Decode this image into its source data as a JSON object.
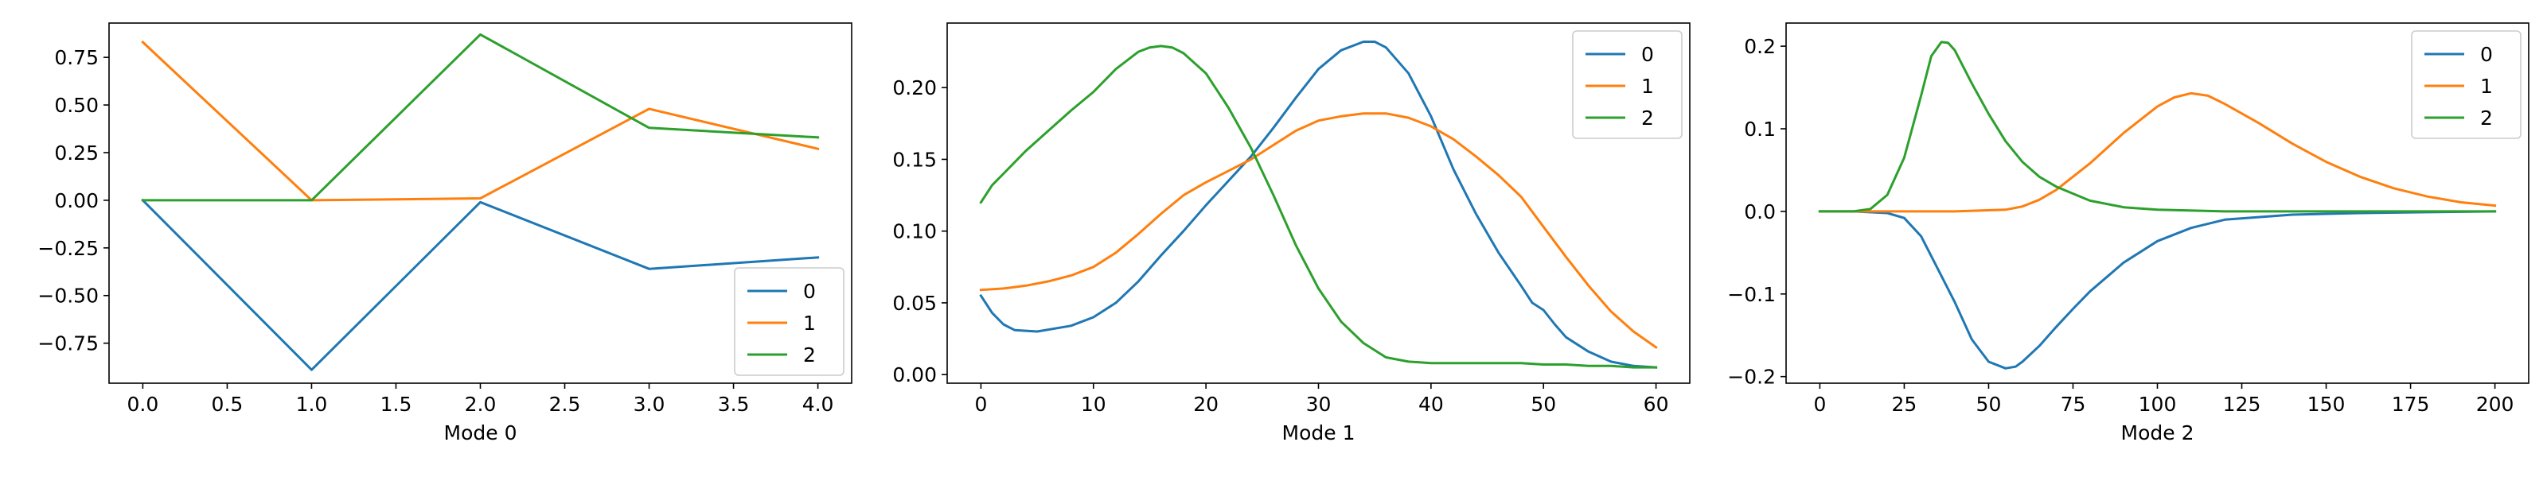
{
  "colors": [
    "#1f77b4",
    "#ff7f0e",
    "#2ca02c"
  ],
  "chart_data": [
    {
      "type": "line",
      "xlabel": "Mode 0",
      "ylabel": "",
      "xlim": [
        -0.2,
        4.2
      ],
      "ylim": [
        -0.96,
        0.93
      ],
      "xticks": [
        "0.0",
        "0.5",
        "1.0",
        "1.5",
        "2.0",
        "2.5",
        "3.0",
        "3.5",
        "4.0"
      ],
      "yticks": [
        "-0.75",
        "-0.50",
        "-0.25",
        "0.00",
        "0.25",
        "0.50",
        "0.75"
      ],
      "legend_position": "lower-right",
      "series": [
        {
          "name": "0",
          "x": [
            0,
            1,
            2,
            3,
            4
          ],
          "y": [
            0.0,
            -0.89,
            -0.01,
            -0.36,
            -0.3
          ]
        },
        {
          "name": "1",
          "x": [
            0,
            1,
            2,
            3,
            4
          ],
          "y": [
            0.83,
            0.0,
            0.01,
            0.48,
            0.27
          ]
        },
        {
          "name": "2",
          "x": [
            0,
            1,
            2,
            3,
            4
          ],
          "y": [
            0.0,
            0.0,
            0.87,
            0.38,
            0.33
          ]
        }
      ]
    },
    {
      "type": "line",
      "xlabel": "Mode 1",
      "ylabel": "",
      "xlim": [
        -3,
        63
      ],
      "ylim": [
        -0.006,
        0.245
      ],
      "xticks": [
        "0",
        "10",
        "20",
        "30",
        "40",
        "50",
        "60"
      ],
      "yticks": [
        "0.00",
        "0.05",
        "0.10",
        "0.15",
        "0.20"
      ],
      "legend_position": "top-right",
      "series": [
        {
          "name": "0",
          "x": [
            0,
            1,
            2,
            3,
            5,
            8,
            10,
            12,
            14,
            16,
            18,
            20,
            22,
            24,
            26,
            28,
            30,
            32,
            34,
            35,
            36,
            38,
            40,
            42,
            44,
            46,
            48,
            49,
            50,
            51,
            52,
            54,
            56,
            58,
            60
          ],
          "y": [
            0.055,
            0.043,
            0.035,
            0.031,
            0.03,
            0.034,
            0.04,
            0.05,
            0.065,
            0.083,
            0.1,
            0.118,
            0.135,
            0.152,
            0.172,
            0.193,
            0.213,
            0.226,
            0.232,
            0.232,
            0.228,
            0.21,
            0.18,
            0.143,
            0.112,
            0.085,
            0.062,
            0.05,
            0.045,
            0.035,
            0.026,
            0.016,
            0.009,
            0.006,
            0.005
          ]
        },
        {
          "name": "1",
          "x": [
            0,
            2,
            4,
            6,
            8,
            10,
            12,
            14,
            16,
            18,
            20,
            22,
            24,
            26,
            28,
            30,
            32,
            34,
            36,
            38,
            40,
            42,
            44,
            46,
            48,
            50,
            52,
            54,
            56,
            58,
            60
          ],
          "y": [
            0.059,
            0.06,
            0.062,
            0.065,
            0.069,
            0.075,
            0.085,
            0.098,
            0.112,
            0.125,
            0.134,
            0.142,
            0.15,
            0.16,
            0.17,
            0.177,
            0.18,
            0.182,
            0.182,
            0.179,
            0.173,
            0.164,
            0.152,
            0.139,
            0.124,
            0.103,
            0.082,
            0.062,
            0.044,
            0.03,
            0.019
          ]
        },
        {
          "name": "2",
          "x": [
            0,
            1,
            2,
            4,
            6,
            8,
            10,
            12,
            14,
            15,
            16,
            17,
            18,
            20,
            22,
            24,
            26,
            28,
            30,
            32,
            34,
            36,
            38,
            40,
            42,
            44,
            46,
            48,
            50,
            52,
            54,
            56,
            58,
            60
          ],
          "y": [
            0.12,
            0.132,
            0.14,
            0.156,
            0.17,
            0.184,
            0.197,
            0.213,
            0.225,
            0.228,
            0.229,
            0.228,
            0.224,
            0.21,
            0.186,
            0.158,
            0.125,
            0.09,
            0.06,
            0.037,
            0.022,
            0.012,
            0.009,
            0.008,
            0.008,
            0.008,
            0.008,
            0.008,
            0.007,
            0.007,
            0.006,
            0.006,
            0.005,
            0.005
          ]
        }
      ]
    },
    {
      "type": "line",
      "xlabel": "Mode 2",
      "ylabel": "",
      "xlim": [
        -10,
        210
      ],
      "ylim": [
        -0.208,
        0.228
      ],
      "xticks": [
        "0",
        "25",
        "50",
        "75",
        "100",
        "125",
        "150",
        "175",
        "200"
      ],
      "yticks": [
        "-0.2",
        "-0.1",
        "0.0",
        "0.1",
        "0.2"
      ],
      "legend_position": "top-right",
      "series": [
        {
          "name": "0",
          "x": [
            0,
            10,
            20,
            25,
            30,
            35,
            40,
            45,
            50,
            55,
            58,
            60,
            65,
            70,
            75,
            80,
            90,
            100,
            110,
            120,
            140,
            160,
            180,
            200
          ],
          "y": [
            0.0,
            0.0,
            -0.002,
            -0.008,
            -0.03,
            -0.07,
            -0.11,
            -0.155,
            -0.182,
            -0.19,
            -0.188,
            -0.182,
            -0.163,
            -0.14,
            -0.118,
            -0.097,
            -0.062,
            -0.036,
            -0.02,
            -0.01,
            -0.004,
            -0.002,
            -0.001,
            0.0
          ]
        },
        {
          "name": "1",
          "x": [
            0,
            20,
            40,
            55,
            60,
            65,
            70,
            80,
            90,
            100,
            105,
            110,
            115,
            120,
            130,
            140,
            150,
            160,
            170,
            180,
            190,
            200
          ],
          "y": [
            0.0,
            0.0,
            0.0,
            0.002,
            0.006,
            0.014,
            0.026,
            0.058,
            0.095,
            0.127,
            0.138,
            0.143,
            0.14,
            0.13,
            0.107,
            0.082,
            0.06,
            0.042,
            0.028,
            0.018,
            0.011,
            0.007
          ]
        },
        {
          "name": "2",
          "x": [
            0,
            10,
            15,
            20,
            25,
            30,
            33,
            36,
            38,
            40,
            45,
            50,
            55,
            60,
            65,
            70,
            80,
            90,
            100,
            120,
            140,
            160,
            200
          ],
          "y": [
            0.0,
            0.0,
            0.003,
            0.02,
            0.065,
            0.14,
            0.188,
            0.205,
            0.204,
            0.195,
            0.155,
            0.118,
            0.085,
            0.06,
            0.042,
            0.03,
            0.013,
            0.005,
            0.002,
            0.0,
            0.0,
            0.0,
            0.0
          ]
        }
      ]
    }
  ]
}
